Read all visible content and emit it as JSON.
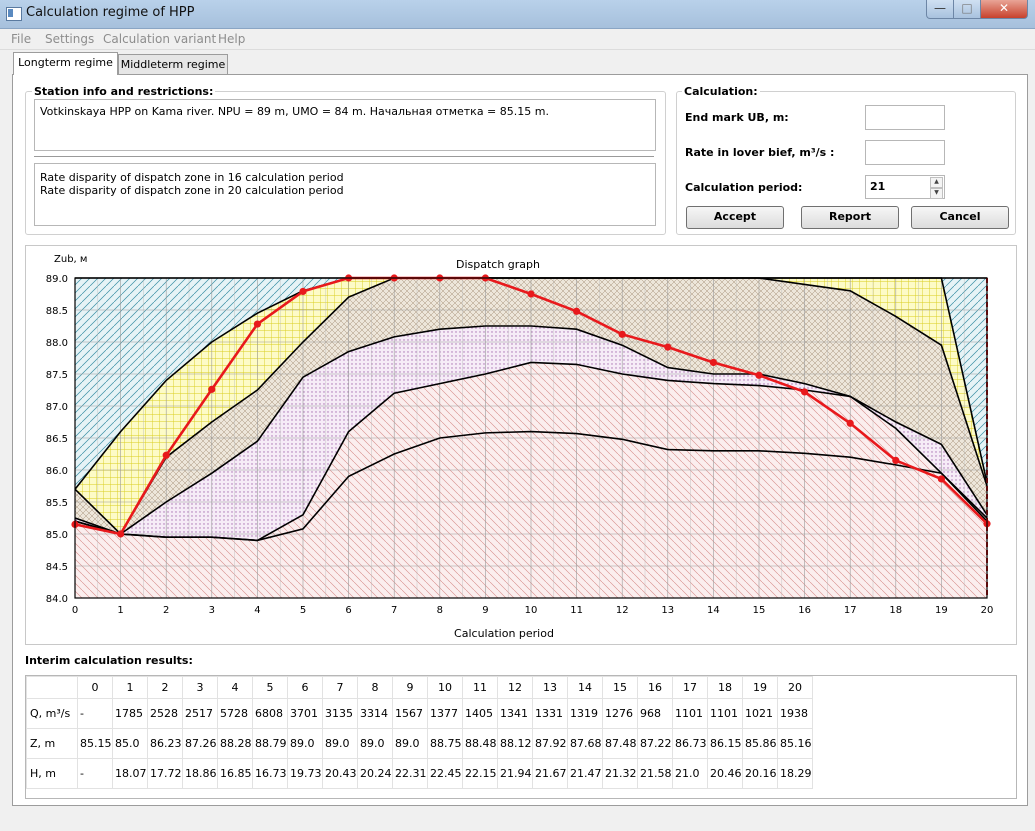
{
  "window": {
    "title": "Calculation regime of HPP"
  },
  "menu": [
    "File",
    "Settings",
    "Calculation variant",
    "Help"
  ],
  "tabs": [
    "Longterm regime",
    "Middleterm regime"
  ],
  "station": {
    "title": "Station info and restrictions:",
    "info": "Votkinskaya HPP on Kama river. NPU = 89 m, UMO = 84 m. Начальная отметка = 85.15 m.",
    "messages": [
      "Rate disparity of dispatch zone in 16 calculation period",
      "Rate disparity of dispatch zone in 20 calculation period"
    ]
  },
  "calculation": {
    "title": "Calculation:",
    "end_mark_label": "End mark UB, m:",
    "end_mark_value": "",
    "rate_label": "Rate in lover bief, m³/s :",
    "rate_value": "",
    "period_label": "Calculation period:",
    "period_value": "21",
    "buttons": {
      "accept": "Accept",
      "report": "Report",
      "cancel": "Cancel"
    }
  },
  "chart_data": {
    "type": "area",
    "title": "Dispatch graph",
    "xlabel": "Calculation period",
    "ylabel": "Zub, м",
    "xlim": [
      0,
      20
    ],
    "ylim": [
      84.0,
      89.0
    ],
    "x_ticks": [
      0,
      1,
      2,
      3,
      4,
      5,
      6,
      7,
      8,
      9,
      10,
      11,
      12,
      13,
      14,
      15,
      16,
      17,
      18,
      19,
      20
    ],
    "y_ticks": [
      "84.0",
      "84.5",
      "85.0",
      "85.5",
      "86.0",
      "86.5",
      "87.0",
      "87.5",
      "88.0",
      "88.5",
      "89.0"
    ],
    "grid": true,
    "zone_boundaries": [
      [
        85.7,
        86.6,
        87.4,
        88.0,
        88.45,
        88.8,
        89.0,
        89.0,
        89.0,
        89.0,
        89.0,
        89.0,
        89.0,
        89.0,
        89.0,
        89.0,
        89.0,
        89.0,
        89.0,
        89.0,
        85.8
      ],
      [
        85.7,
        85.0,
        86.2,
        86.75,
        87.25,
        88.0,
        88.7,
        89.0,
        89.0,
        89.0,
        89.0,
        89.0,
        89.0,
        89.0,
        89.0,
        89.0,
        88.9,
        88.8,
        88.4,
        87.95,
        85.75
      ],
      [
        85.25,
        85.0,
        85.5,
        85.95,
        86.45,
        87.45,
        87.85,
        88.08,
        88.2,
        88.25,
        88.25,
        88.2,
        87.95,
        87.6,
        87.5,
        87.5,
        87.35,
        87.15,
        86.75,
        86.4,
        85.3
      ],
      [
        85.2,
        85.0,
        84.95,
        84.95,
        84.9,
        85.3,
        86.6,
        87.2,
        87.35,
        87.5,
        87.68,
        87.65,
        87.5,
        87.4,
        87.35,
        87.32,
        87.25,
        87.15,
        86.65,
        85.95,
        85.25
      ],
      [
        85.2,
        85.0,
        84.95,
        84.95,
        84.9,
        85.08,
        85.9,
        86.25,
        86.5,
        86.58,
        86.6,
        86.57,
        86.48,
        86.32,
        86.3,
        86.3,
        86.26,
        86.2,
        86.08,
        85.95,
        85.2
      ]
    ],
    "series": [
      {
        "values": [
          85.15,
          85.0,
          86.23,
          87.26,
          88.28,
          88.79,
          89.0,
          89.0,
          89.0,
          89.0,
          88.75,
          88.48,
          88.12,
          87.92,
          87.68,
          87.48,
          87.22,
          86.73,
          86.15,
          85.86,
          85.16
        ],
        "color": "#e8191c"
      }
    ],
    "zone_colors": [
      "#9dc9d1",
      "#f0e24a",
      "#c8b89e",
      "#c99fd0",
      "#e7a9a6"
    ]
  },
  "results": {
    "title": "Interim calculation results:",
    "columns": [
      "0",
      "1",
      "2",
      "3",
      "4",
      "5",
      "6",
      "7",
      "8",
      "9",
      "10",
      "11",
      "12",
      "13",
      "14",
      "15",
      "16",
      "17",
      "18",
      "19",
      "20"
    ],
    "rows": [
      {
        "label": "Q, m³/s",
        "values": [
          "-",
          "1785",
          "2528",
          "2517",
          "5728",
          "6808",
          "3701",
          "3135",
          "3314",
          "1567",
          "1377",
          "1405",
          "1341",
          "1331",
          "1319",
          "1276",
          "968",
          "1101",
          "1101",
          "1021",
          "1938"
        ]
      },
      {
        "label": "Z, m",
        "values": [
          "85.15",
          "85.0",
          "86.23",
          "87.26",
          "88.28",
          "88.79",
          "89.0",
          "89.0",
          "89.0",
          "89.0",
          "88.75",
          "88.48",
          "88.12",
          "87.92",
          "87.68",
          "87.48",
          "87.22",
          "86.73",
          "86.15",
          "85.86",
          "85.16"
        ]
      },
      {
        "label": "H, m",
        "values": [
          "-",
          "18.07",
          "17.72",
          "18.86",
          "16.85",
          "16.73",
          "19.73",
          "20.43",
          "20.24",
          "22.31",
          "22.45",
          "22.15",
          "21.94",
          "21.67",
          "21.47",
          "21.32",
          "21.58",
          "21.0",
          "20.46",
          "20.16",
          "18.29"
        ]
      }
    ]
  }
}
